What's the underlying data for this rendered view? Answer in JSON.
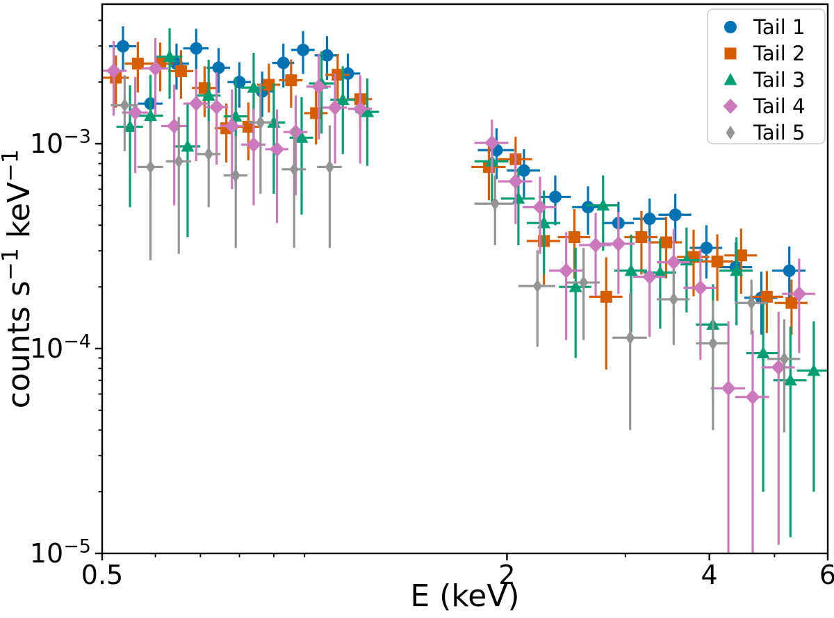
{
  "chart_data": {
    "type": "scatter",
    "title": "",
    "xlabel": "E (keV)",
    "ylabel": "counts s^−1 keV^−1",
    "xscale": "log",
    "yscale": "log",
    "xlim": [
      0.5,
      6.0
    ],
    "ylim": [
      1e-05,
      0.0048
    ],
    "grid": false,
    "axis_color": "#000000",
    "legend_position": "upper right",
    "xticks": {
      "major": [
        {
          "value": 0.5,
          "label": "0.5"
        },
        {
          "value": 2,
          "label": "2"
        },
        {
          "value": 4,
          "label": "4"
        },
        {
          "value": 6,
          "label": "6"
        }
      ],
      "minor": [
        0.6,
        0.7,
        0.8,
        0.9,
        1.0,
        3.0,
        5.0
      ]
    },
    "yticks": {
      "major": [
        {
          "value": 0.001,
          "label": "10^−3"
        },
        {
          "value": 0.0001,
          "label": "10^−4"
        },
        {
          "value": 1e-05,
          "label": "10^−5"
        }
      ],
      "minor": [
        2e-05,
        3e-05,
        4e-05,
        5e-05,
        6e-05,
        7e-05,
        8e-05,
        9e-05,
        0.0002,
        0.0003,
        0.0004,
        0.0005,
        0.0006,
        0.0007,
        0.0008,
        0.0009,
        0.002,
        0.003,
        0.004
      ]
    },
    "series": [
      {
        "name": "Tail 1",
        "color": "#0173B2",
        "marker": "circle",
        "points": [
          [
            0.537,
            0.00299,
            0.025,
            0.00075
          ],
          [
            0.59,
            0.00157,
            0.025,
            0.0004
          ],
          [
            0.645,
            0.00246,
            0.028,
            0.00062
          ],
          [
            0.69,
            0.00292,
            0.03,
            0.00072
          ],
          [
            0.745,
            0.00235,
            0.03,
            0.00058
          ],
          [
            0.8,
            0.002,
            0.032,
            0.0005
          ],
          [
            0.865,
            0.0018,
            0.035,
            0.00045
          ],
          [
            0.93,
            0.00248,
            0.035,
            0.0006
          ],
          [
            0.995,
            0.00287,
            0.04,
            0.00068
          ],
          [
            1.08,
            0.0027,
            0.045,
            0.00065
          ],
          [
            1.16,
            0.0022,
            0.05,
            0.00055
          ],
          [
            1.93,
            0.00093,
            0.12,
            0.00026
          ],
          [
            2.12,
            0.00074,
            0.12,
            0.0002
          ],
          [
            2.36,
            0.00055,
            0.13,
            0.00015
          ],
          [
            2.64,
            0.00049,
            0.14,
            0.00013
          ],
          [
            2.93,
            0.00041,
            0.16,
            0.00011
          ],
          [
            3.26,
            0.00043,
            0.18,
            0.00011
          ],
          [
            3.56,
            0.00045,
            0.2,
            0.00012
          ],
          [
            3.96,
            0.00031,
            0.22,
            9e-05
          ],
          [
            4.38,
            0.00025,
            0.25,
            8e-05
          ],
          [
            4.78,
            0.000177,
            0.27,
            6e-05
          ],
          [
            5.26,
            0.00024,
            0.3,
            7.5e-05
          ]
        ]
      },
      {
        "name": "Tail 2",
        "color": "#D55E00",
        "marker": "square",
        "points": [
          [
            0.524,
            0.0021,
            0.024,
            0.0006
          ],
          [
            0.565,
            0.00246,
            0.025,
            0.00068
          ],
          [
            0.61,
            0.00246,
            0.027,
            0.00066
          ],
          [
            0.655,
            0.00226,
            0.028,
            0.0006
          ],
          [
            0.71,
            0.00187,
            0.03,
            0.00052
          ],
          [
            0.765,
            0.00119,
            0.03,
            0.00038
          ],
          [
            0.825,
            0.00121,
            0.033,
            0.00038
          ],
          [
            0.885,
            0.00194,
            0.035,
            0.00052
          ],
          [
            0.955,
            0.00204,
            0.038,
            0.00054
          ],
          [
            1.04,
            0.00141,
            0.042,
            0.00042
          ],
          [
            1.12,
            0.00217,
            0.046,
            0.00056
          ],
          [
            1.21,
            0.00165,
            0.05,
            0.00048
          ],
          [
            1.88,
            0.00077,
            0.11,
            0.00024
          ],
          [
            2.06,
            0.00084,
            0.12,
            0.00024
          ],
          [
            2.27,
            0.000335,
            0.13,
            0.00013
          ],
          [
            2.52,
            0.00035,
            0.14,
            0.00013
          ],
          [
            2.81,
            0.000179,
            0.16,
            0.0001
          ],
          [
            3.17,
            0.00035,
            0.18,
            0.00012
          ],
          [
            3.45,
            0.00033,
            0.19,
            0.00011
          ],
          [
            3.79,
            0.00028,
            0.21,
            0.0001
          ],
          [
            4.11,
            0.000266,
            0.23,
            9.5e-05
          ],
          [
            4.46,
            0.000285,
            0.25,
            0.0001
          ],
          [
            4.87,
            0.000179,
            0.28,
            6e-05
          ],
          [
            5.3,
            0.000167,
            0.3,
            5e-05
          ]
        ]
      },
      {
        "name": "Tail 3",
        "color": "#029E73",
        "marker": "triangle_up",
        "points": [
          [
            0.55,
            0.00121,
            0.025,
            0.00072
          ],
          [
            0.59,
            0.00137,
            0.026,
            0.0008
          ],
          [
            0.63,
            0.00266,
            0.028,
            0.001
          ],
          [
            0.67,
            0.00097,
            0.03,
            0.00062
          ],
          [
            0.72,
            0.00172,
            0.03,
            0.00085
          ],
          [
            0.79,
            0.00136,
            0.032,
            0.00075
          ],
          [
            0.84,
            0.00188,
            0.035,
            0.0009
          ],
          [
            0.9,
            0.00127,
            0.036,
            0.0007
          ],
          [
            0.99,
            0.00107,
            0.04,
            0.00062
          ],
          [
            1.06,
            0.00197,
            0.045,
            0.00085
          ],
          [
            1.14,
            0.00164,
            0.048,
            0.00075
          ],
          [
            1.24,
            0.00143,
            0.05,
            0.00065
          ],
          [
            1.9,
            0.00082,
            0.11,
            0.0003
          ],
          [
            2.08,
            0.00054,
            0.12,
            0.00022
          ],
          [
            2.27,
            0.00041,
            0.13,
            0.00018
          ],
          [
            2.53,
            0.0002,
            0.14,
            0.00011
          ],
          [
            2.78,
            0.0005,
            0.16,
            0.0002
          ],
          [
            3.06,
            0.00024,
            0.17,
            0.00012
          ],
          [
            3.38,
            0.000235,
            0.19,
            0.00011
          ],
          [
            3.7,
            0.00027,
            0.21,
            0.00012
          ],
          [
            4.05,
            0.000131,
            0.23,
            7.5e-05
          ],
          [
            4.39,
            0.00024,
            0.25,
            0.00011
          ],
          [
            4.81,
            9.5e-05,
            0.27,
            7.5e-05
          ],
          [
            5.28,
            7e-05,
            0.3,
            5.8e-05
          ],
          [
            5.72,
            7.8e-05,
            0.32,
            5.8e-05
          ]
        ]
      },
      {
        "name": "Tail 4",
        "color": "#CC78BC",
        "marker": "diamond",
        "points": [
          [
            0.52,
            0.00227,
            0.024,
            0.0009
          ],
          [
            0.56,
            0.00142,
            0.025,
            0.0007
          ],
          [
            0.6,
            0.00233,
            0.027,
            0.00095
          ],
          [
            0.64,
            0.00122,
            0.028,
            0.00072
          ],
          [
            0.69,
            0.00157,
            0.03,
            0.00075
          ],
          [
            0.74,
            0.00151,
            0.03,
            0.00072
          ],
          [
            0.78,
            0.00122,
            0.032,
            0.00062
          ],
          [
            0.84,
            0.00099,
            0.035,
            0.00049
          ],
          [
            0.91,
            0.00094,
            0.036,
            0.00053
          ],
          [
            0.97,
            0.00114,
            0.04,
            0.00058
          ],
          [
            1.05,
            0.0019,
            0.044,
            0.00085
          ],
          [
            1.11,
            0.0015,
            0.046,
            0.0007
          ],
          [
            1.21,
            0.00148,
            0.05,
            0.00068
          ],
          [
            1.9,
            0.00101,
            0.11,
            0.0003
          ],
          [
            2.06,
            0.000655,
            0.12,
            0.00025
          ],
          [
            2.24,
            0.00049,
            0.13,
            0.0002
          ],
          [
            2.45,
            0.00024,
            0.14,
            0.00013
          ],
          [
            2.71,
            0.00032,
            0.15,
            0.00014
          ],
          [
            2.93,
            0.000325,
            0.17,
            0.00014
          ],
          [
            3.26,
            0.000224,
            0.18,
            0.00011
          ],
          [
            3.54,
            0.000264,
            0.2,
            0.00012
          ],
          [
            3.88,
            0.000198,
            0.22,
            0.00011
          ],
          [
            4.27,
            6.4e-05,
            0.25,
            7.2e-05
          ],
          [
            4.64,
            5.8e-05,
            0.27,
            6.5e-05
          ],
          [
            5.07,
            8.1e-05,
            0.29,
            7e-05
          ],
          [
            5.44,
            0.000185,
            0.31,
            9e-05
          ]
        ]
      },
      {
        "name": "Tail 5",
        "color": "#949494",
        "marker": "thin_diamond",
        "points": [
          [
            0.54,
            0.00154,
            0.025,
            0.00062
          ],
          [
            0.59,
            0.00077,
            0.026,
            0.0005
          ],
          [
            0.65,
            0.00082,
            0.028,
            0.00053
          ],
          [
            0.72,
            0.00089,
            0.03,
            0.0004
          ],
          [
            0.79,
            0.0007,
            0.032,
            0.00039
          ],
          [
            0.86,
            0.00127,
            0.035,
            0.0007
          ],
          [
            0.965,
            0.00075,
            0.04,
            0.00044
          ],
          [
            1.09,
            0.00077,
            0.046,
            0.00046
          ],
          [
            1.92,
            0.00051,
            0.13,
            0.00019
          ],
          [
            2.22,
            0.000202,
            0.14,
            0.0001
          ],
          [
            2.6,
            0.00021,
            0.15,
            0.0001
          ],
          [
            3.05,
            0.000113,
            0.18,
            7.3e-05
          ],
          [
            3.54,
            0.000174,
            0.2,
            7e-05
          ],
          [
            4.05,
            0.000106,
            0.23,
            6.6e-05
          ],
          [
            4.62,
            0.000167,
            0.26,
            5e-05
          ],
          [
            5.17,
            8.9e-05,
            0.29,
            5e-05
          ]
        ]
      }
    ],
    "legend": {
      "border_color": "#cccccc",
      "background": "#ffffff",
      "items": [
        "Tail 1",
        "Tail 2",
        "Tail 3",
        "Tail 4",
        "Tail 5"
      ]
    }
  }
}
